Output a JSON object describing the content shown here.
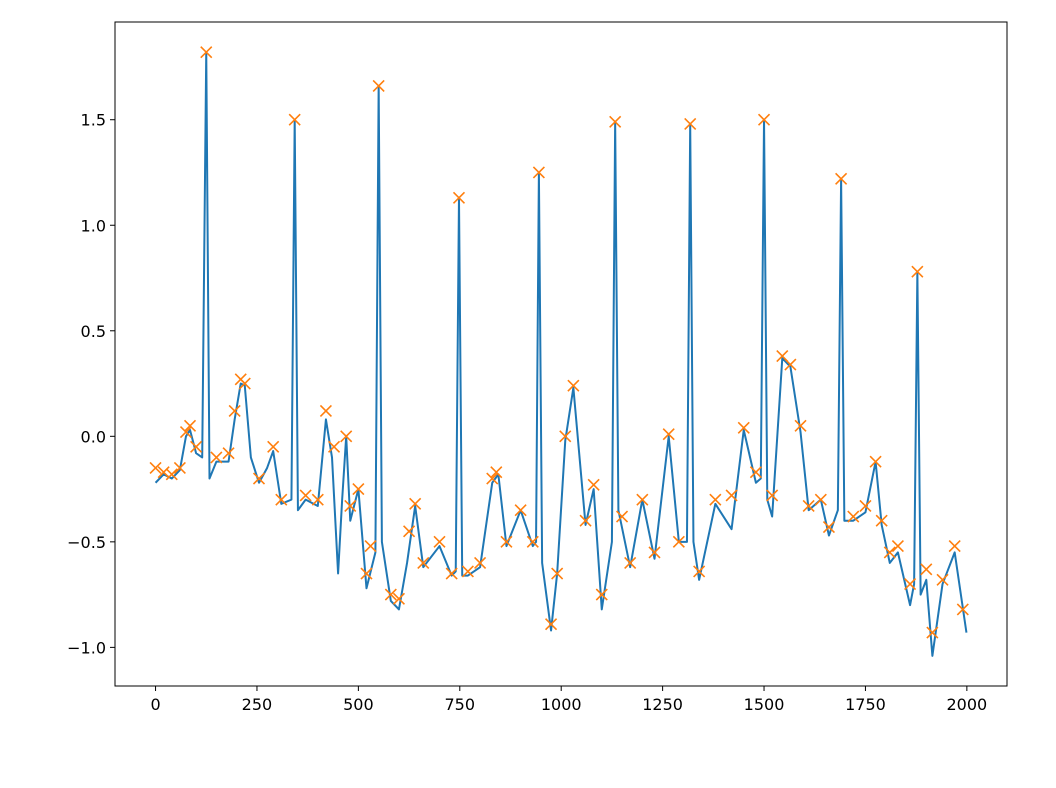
{
  "chart_data": {
    "type": "line",
    "xlim": [
      -99.95,
      2098.95
    ],
    "ylim": [
      -1.183,
      1.963
    ],
    "xticks": [
      0,
      250,
      500,
      750,
      1000,
      1250,
      1500,
      1750,
      2000
    ],
    "yticks": [
      {
        "value": -1.0,
        "label": "−1.0"
      },
      {
        "value": -0.5,
        "label": "−0.5"
      },
      {
        "value": 0.0,
        "label": "0.0"
      },
      {
        "value": 0.5,
        "label": "0.5"
      },
      {
        "value": 1.0,
        "label": "1.0"
      },
      {
        "value": 1.5,
        "label": "1.5"
      }
    ],
    "grid": false,
    "series": [
      {
        "color": "#1f77b4",
        "marker": "none",
        "linestyle": "solid",
        "x": [
          0,
          20,
          40,
          60,
          75,
          85,
          100,
          115,
          125,
          133,
          150,
          180,
          195,
          210,
          220,
          235,
          255,
          275,
          290,
          310,
          335,
          343,
          351,
          370,
          400,
          420,
          435,
          450,
          460,
          470,
          480,
          500,
          520,
          542,
          550,
          558,
          580,
          600,
          620,
          640,
          660,
          700,
          730,
          740,
          748,
          756,
          770,
          800,
          830,
          845,
          865,
          900,
          930,
          938,
          945,
          953,
          975,
          990,
          1010,
          1030,
          1060,
          1080,
          1100,
          1125,
          1133,
          1141,
          1170,
          1200,
          1230,
          1265,
          1290,
          1310,
          1318,
          1326,
          1340,
          1380,
          1420,
          1450,
          1480,
          1492,
          1500,
          1508,
          1520,
          1545,
          1565,
          1590,
          1610,
          1640,
          1660,
          1682,
          1690,
          1698,
          1720,
          1750,
          1775,
          1790,
          1810,
          1830,
          1860,
          1870,
          1878,
          1886,
          1900,
          1915,
          1940,
          1970,
          1999
        ],
        "values": [
          -0.22,
          -0.18,
          -0.2,
          -0.16,
          0.0,
          0.03,
          -0.08,
          -0.1,
          1.82,
          -0.2,
          -0.12,
          -0.12,
          0.08,
          0.25,
          0.24,
          -0.1,
          -0.22,
          -0.15,
          -0.07,
          -0.32,
          -0.3,
          1.5,
          -0.35,
          -0.3,
          -0.33,
          0.08,
          -0.1,
          -0.65,
          -0.3,
          0.0,
          -0.4,
          -0.25,
          -0.72,
          -0.55,
          1.66,
          -0.5,
          -0.78,
          -0.82,
          -0.6,
          -0.33,
          -0.62,
          -0.52,
          -0.66,
          -0.64,
          1.13,
          -0.66,
          -0.66,
          -0.62,
          -0.22,
          -0.18,
          -0.52,
          -0.35,
          -0.52,
          -0.5,
          1.25,
          -0.6,
          -0.92,
          -0.65,
          -0.02,
          0.23,
          -0.42,
          -0.25,
          -0.82,
          -0.5,
          1.49,
          -0.35,
          -0.62,
          -0.3,
          -0.58,
          0.0,
          -0.5,
          -0.5,
          1.48,
          -0.5,
          -0.68,
          -0.32,
          -0.44,
          0.03,
          -0.22,
          -0.2,
          1.5,
          -0.3,
          -0.38,
          0.37,
          0.33,
          0.02,
          -0.35,
          -0.3,
          -0.47,
          -0.35,
          1.22,
          -0.4,
          -0.4,
          -0.36,
          -0.12,
          -0.42,
          -0.6,
          -0.55,
          -0.8,
          -0.7,
          0.78,
          -0.75,
          -0.68,
          -1.04,
          -0.7,
          -0.55,
          -0.93
        ]
      },
      {
        "color": "#ff7f0e",
        "marker": "x",
        "linestyle": "none",
        "x": [
          0,
          20,
          40,
          60,
          75,
          85,
          100,
          125,
          150,
          180,
          195,
          210,
          220,
          255,
          290,
          310,
          343,
          370,
          400,
          420,
          440,
          470,
          480,
          500,
          520,
          530,
          550,
          580,
          600,
          625,
          640,
          660,
          700,
          730,
          748,
          770,
          800,
          830,
          840,
          865,
          900,
          930,
          945,
          975,
          990,
          1010,
          1030,
          1060,
          1080,
          1100,
          1133,
          1150,
          1170,
          1200,
          1230,
          1265,
          1290,
          1318,
          1340,
          1380,
          1420,
          1450,
          1480,
          1500,
          1520,
          1545,
          1565,
          1590,
          1610,
          1640,
          1660,
          1690,
          1720,
          1750,
          1775,
          1790,
          1810,
          1830,
          1860,
          1878,
          1900,
          1915,
          1940,
          1970,
          1990
        ],
        "values": [
          -0.15,
          -0.17,
          -0.18,
          -0.15,
          0.02,
          0.05,
          -0.05,
          1.82,
          -0.1,
          -0.08,
          0.12,
          0.27,
          0.25,
          -0.2,
          -0.05,
          -0.3,
          1.5,
          -0.28,
          -0.3,
          0.12,
          -0.05,
          0.0,
          -0.33,
          -0.25,
          -0.65,
          -0.52,
          1.66,
          -0.75,
          -0.77,
          -0.45,
          -0.32,
          -0.6,
          -0.5,
          -0.65,
          1.13,
          -0.64,
          -0.6,
          -0.2,
          -0.17,
          -0.5,
          -0.35,
          -0.5,
          1.25,
          -0.89,
          -0.65,
          0.0,
          0.24,
          -0.4,
          -0.23,
          -0.75,
          1.49,
          -0.38,
          -0.6,
          -0.3,
          -0.55,
          0.01,
          -0.5,
          1.48,
          -0.64,
          -0.3,
          -0.28,
          0.04,
          -0.17,
          1.5,
          -0.28,
          0.38,
          0.34,
          0.05,
          -0.33,
          -0.3,
          -0.43,
          1.22,
          -0.38,
          -0.33,
          -0.12,
          -0.4,
          -0.55,
          -0.52,
          -0.7,
          0.78,
          -0.63,
          -0.93,
          -0.68,
          -0.52,
          -0.82
        ]
      }
    ]
  }
}
